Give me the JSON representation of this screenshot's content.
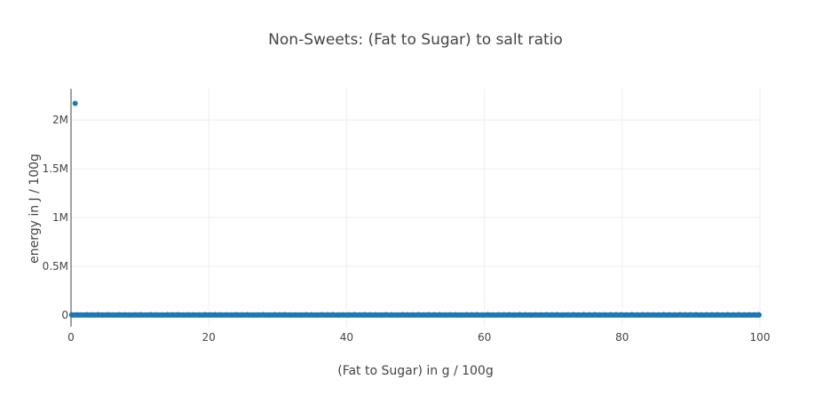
{
  "chart_data": {
    "type": "scatter",
    "title": "Non-Sweets: (Fat to Sugar) to salt ratio",
    "xlabel": "(Fat to Sugar) in g / 100g",
    "ylabel": "energy in J / 100g",
    "xlim": [
      0,
      100
    ],
    "ylim": [
      -120000,
      2320000
    ],
    "x_ticks": [
      0,
      20,
      40,
      60,
      80,
      100
    ],
    "x_tick_labels": [
      "0",
      "20",
      "40",
      "60",
      "80",
      "100"
    ],
    "y_ticks": [
      0,
      500000,
      1000000,
      1500000,
      2000000
    ],
    "y_tick_labels": [
      "0",
      "0.5M",
      "1M",
      "1.5M",
      "2M"
    ],
    "grid": true,
    "legend": "none",
    "marker_color": "#1f77b4",
    "series": [
      {
        "points": [
          {
            "x": 0.6,
            "y": 2170000
          },
          {
            "x": 0.1,
            "y": 1500
          },
          {
            "x": 0.8,
            "y": 2200
          },
          {
            "x": 1.5,
            "y": 900
          },
          {
            "x": 2.3,
            "y": 2600
          },
          {
            "x": 3.1,
            "y": 1700
          },
          {
            "x": 3.9,
            "y": 3100
          },
          {
            "x": 4.6,
            "y": 800
          },
          {
            "x": 5.4,
            "y": 2400
          },
          {
            "x": 6.2,
            "y": 1200
          },
          {
            "x": 7.0,
            "y": 2900
          },
          {
            "x": 7.8,
            "y": 1600
          },
          {
            "x": 8.5,
            "y": 700
          },
          {
            "x": 9.3,
            "y": 2100
          },
          {
            "x": 10.1,
            "y": 3300
          },
          {
            "x": 10.9,
            "y": 1100
          },
          {
            "x": 11.6,
            "y": 2500
          },
          {
            "x": 12.4,
            "y": 1900
          },
          {
            "x": 13.2,
            "y": 600
          },
          {
            "x": 14.0,
            "y": 2800
          },
          {
            "x": 14.7,
            "y": 1400
          },
          {
            "x": 15.5,
            "y": 3200
          },
          {
            "x": 16.3,
            "y": 1000
          },
          {
            "x": 17.1,
            "y": 2300
          },
          {
            "x": 17.8,
            "y": 1800
          },
          {
            "x": 18.6,
            "y": 900
          },
          {
            "x": 19.4,
            "y": 2700
          },
          {
            "x": 20.2,
            "y": 1500
          },
          {
            "x": 20.9,
            "y": 3000
          },
          {
            "x": 21.7,
            "y": 1300
          },
          {
            "x": 22.5,
            "y": 2200
          },
          {
            "x": 23.3,
            "y": 700
          },
          {
            "x": 24.0,
            "y": 2600
          },
          {
            "x": 24.8,
            "y": 1700
          },
          {
            "x": 25.6,
            "y": 3400
          },
          {
            "x": 26.4,
            "y": 1100
          },
          {
            "x": 27.1,
            "y": 2000
          },
          {
            "x": 27.9,
            "y": 2900
          },
          {
            "x": 28.7,
            "y": 800
          },
          {
            "x": 29.5,
            "y": 2400
          },
          {
            "x": 30.2,
            "y": 1600
          },
          {
            "x": 31.0,
            "y": 3100
          },
          {
            "x": 31.8,
            "y": 1200
          },
          {
            "x": 32.6,
            "y": 2100
          },
          {
            "x": 33.3,
            "y": 600
          },
          {
            "x": 34.1,
            "y": 2800
          },
          {
            "x": 34.9,
            "y": 1900
          },
          {
            "x": 35.7,
            "y": 1000
          },
          {
            "x": 36.4,
            "y": 3300
          },
          {
            "x": 37.2,
            "y": 1400
          },
          {
            "x": 38.0,
            "y": 2500
          },
          {
            "x": 38.8,
            "y": 900
          },
          {
            "x": 39.5,
            "y": 2300
          },
          {
            "x": 40.3,
            "y": 1800
          },
          {
            "x": 41.1,
            "y": 3000
          },
          {
            "x": 41.9,
            "y": 700
          },
          {
            "x": 42.6,
            "y": 2700
          },
          {
            "x": 43.4,
            "y": 1500
          },
          {
            "x": 44.2,
            "y": 2200
          },
          {
            "x": 45.0,
            "y": 1100
          },
          {
            "x": 45.7,
            "y": 3200
          },
          {
            "x": 46.5,
            "y": 1700
          },
          {
            "x": 47.3,
            "y": 800
          },
          {
            "x": 48.1,
            "y": 2600
          },
          {
            "x": 48.8,
            "y": 2000
          },
          {
            "x": 49.6,
            "y": 1300
          },
          {
            "x": 50.4,
            "y": 2900
          },
          {
            "x": 51.2,
            "y": 600
          },
          {
            "x": 51.9,
            "y": 2400
          },
          {
            "x": 52.7,
            "y": 1600
          },
          {
            "x": 53.5,
            "y": 3100
          },
          {
            "x": 54.3,
            "y": 1000
          },
          {
            "x": 55.0,
            "y": 2100
          },
          {
            "x": 55.8,
            "y": 1900
          },
          {
            "x": 56.6,
            "y": 900
          },
          {
            "x": 57.4,
            "y": 2800
          },
          {
            "x": 58.1,
            "y": 1400
          },
          {
            "x": 58.9,
            "y": 3300
          },
          {
            "x": 59.7,
            "y": 1200
          },
          {
            "x": 60.5,
            "y": 2500
          },
          {
            "x": 61.2,
            "y": 700
          },
          {
            "x": 62.0,
            "y": 2200
          },
          {
            "x": 62.8,
            "y": 1800
          },
          {
            "x": 63.6,
            "y": 3000
          },
          {
            "x": 64.3,
            "y": 1100
          },
          {
            "x": 65.1,
            "y": 2700
          },
          {
            "x": 65.9,
            "y": 1500
          },
          {
            "x": 66.7,
            "y": 800
          },
          {
            "x": 67.4,
            "y": 2300
          },
          {
            "x": 68.2,
            "y": 2000
          },
          {
            "x": 69.0,
            "y": 3200
          },
          {
            "x": 69.8,
            "y": 1300
          },
          {
            "x": 70.5,
            "y": 2600
          },
          {
            "x": 71.3,
            "y": 600
          },
          {
            "x": 72.1,
            "y": 1700
          },
          {
            "x": 72.9,
            "y": 2900
          },
          {
            "x": 73.6,
            "y": 1000
          },
          {
            "x": 74.4,
            "y": 2400
          },
          {
            "x": 75.2,
            "y": 1600
          },
          {
            "x": 76.0,
            "y": 3100
          },
          {
            "x": 76.7,
            "y": 900
          },
          {
            "x": 77.5,
            "y": 2100
          },
          {
            "x": 78.3,
            "y": 1900
          },
          {
            "x": 79.1,
            "y": 2800
          },
          {
            "x": 79.8,
            "y": 1400
          },
          {
            "x": 80.6,
            "y": 700
          },
          {
            "x": 81.4,
            "y": 2500
          },
          {
            "x": 82.2,
            "y": 1200
          },
          {
            "x": 82.9,
            "y": 3300
          },
          {
            "x": 83.7,
            "y": 1800
          },
          {
            "x": 84.5,
            "y": 2200
          },
          {
            "x": 85.3,
            "y": 1100
          },
          {
            "x": 86.0,
            "y": 3000
          },
          {
            "x": 86.8,
            "y": 1500
          },
          {
            "x": 87.6,
            "y": 800
          },
          {
            "x": 88.4,
            "y": 2700
          },
          {
            "x": 89.1,
            "y": 2000
          },
          {
            "x": 89.9,
            "y": 1300
          },
          {
            "x": 90.7,
            "y": 2600
          },
          {
            "x": 91.5,
            "y": 600
          },
          {
            "x": 92.2,
            "y": 2300
          },
          {
            "x": 93.0,
            "y": 1700
          },
          {
            "x": 93.8,
            "y": 3200
          },
          {
            "x": 94.6,
            "y": 1000
          },
          {
            "x": 95.3,
            "y": 2900
          },
          {
            "x": 96.1,
            "y": 1400
          },
          {
            "x": 96.9,
            "y": 2400
          },
          {
            "x": 97.7,
            "y": 900
          },
          {
            "x": 98.4,
            "y": 2100
          },
          {
            "x": 99.2,
            "y": 1600
          },
          {
            "x": 99.8,
            "y": 2500
          }
        ]
      }
    ]
  }
}
